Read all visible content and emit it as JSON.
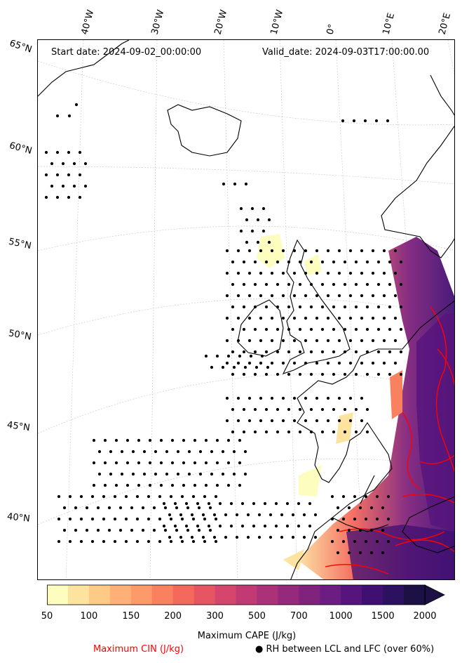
{
  "header": {
    "start_date": "Start date: 2024-09-02_00:00:00",
    "valid_date": "Valid_date: 2024-09-03T17:00:00.00"
  },
  "longitude_labels": [
    "40°W",
    "30°W",
    "20°W",
    "10°W",
    "0°",
    "10°E",
    "20°E"
  ],
  "latitude_labels": [
    "65°N",
    "60°N",
    "55°N",
    "50°N",
    "45°N",
    "40°N"
  ],
  "colorbar": {
    "label": "Maximum CAPE (J/kg)",
    "ticks": [
      "50",
      "100",
      "150",
      "200",
      "300",
      "500",
      "700",
      "1000",
      "1500",
      "2000"
    ],
    "colors": [
      "#fcfdbf",
      "#fde3a0",
      "#fecb86",
      "#feb078",
      "#fd9a6a",
      "#fa815f",
      "#f4695c",
      "#e75563",
      "#d6456c",
      "#c13a73",
      "#ab3178",
      "#95297b",
      "#80237d",
      "#6b1d81",
      "#56147d",
      "#3f0f72",
      "#2c115f",
      "#1c1044"
    ]
  },
  "legend": {
    "cin_label": "Maximum CIN (J/kg)",
    "cin_color": "#ff0000",
    "rh_label": "● RH between LCL and LFC (over 60%)"
  }
}
